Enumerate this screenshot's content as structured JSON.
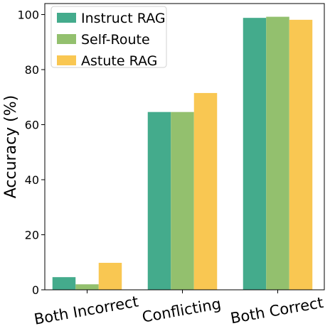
{
  "chart_data": {
    "type": "bar",
    "title": "",
    "xlabel": "",
    "ylabel": "Accuracy (%)",
    "categories": [
      "Both Incorrect",
      "Conflicting",
      "Both Correct"
    ],
    "series": [
      {
        "name": "Instruct RAG",
        "color": "#44ab8c",
        "values": [
          4.6,
          64.6,
          98.8
        ]
      },
      {
        "name": "Self-Route",
        "color": "#93c06e",
        "values": [
          2.0,
          64.6,
          99.2
        ]
      },
      {
        "name": "Astute RAG",
        "color": "#f9c752",
        "values": [
          9.8,
          71.5,
          98.1
        ]
      }
    ],
    "ylim": [
      0,
      104
    ],
    "yticks": [
      0,
      20,
      40,
      60,
      80,
      100
    ],
    "grid": false,
    "legend_position": "top-left"
  }
}
